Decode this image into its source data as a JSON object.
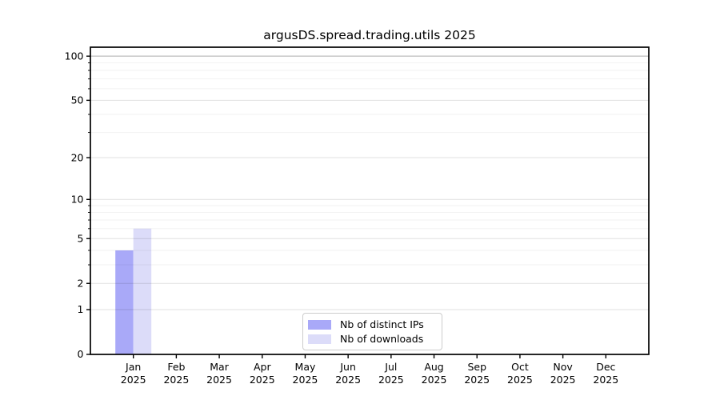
{
  "chart_data": {
    "type": "bar",
    "title": "argusDS.spread.trading.utils 2025",
    "categories": [
      {
        "month": "Jan",
        "year": "2025"
      },
      {
        "month": "Feb",
        "year": "2025"
      },
      {
        "month": "Mar",
        "year": "2025"
      },
      {
        "month": "Apr",
        "year": "2025"
      },
      {
        "month": "May",
        "year": "2025"
      },
      {
        "month": "Jun",
        "year": "2025"
      },
      {
        "month": "Jul",
        "year": "2025"
      },
      {
        "month": "Aug",
        "year": "2025"
      },
      {
        "month": "Sep",
        "year": "2025"
      },
      {
        "month": "Oct",
        "year": "2025"
      },
      {
        "month": "Nov",
        "year": "2025"
      },
      {
        "month": "Dec",
        "year": "2025"
      }
    ],
    "series": [
      {
        "name": "Nb of distinct IPs",
        "color": "#a9a9f8",
        "values": [
          4,
          0,
          0,
          0,
          0,
          0,
          0,
          0,
          0,
          0,
          0,
          0
        ]
      },
      {
        "name": "Nb of downloads",
        "color": "#dcdcf9",
        "values": [
          6,
          0,
          0,
          0,
          0,
          0,
          0,
          0,
          0,
          0,
          0,
          0
        ]
      }
    ],
    "y_scale": "log1p",
    "ylim": [
      0,
      115
    ],
    "y_ticks": [
      0,
      1,
      2,
      5,
      10,
      20,
      50,
      100
    ],
    "y_minor_ticks": [
      3,
      4,
      6,
      7,
      8,
      9,
      30,
      40,
      60,
      70,
      80,
      90
    ],
    "grid": true,
    "legend_position": "lower center"
  }
}
